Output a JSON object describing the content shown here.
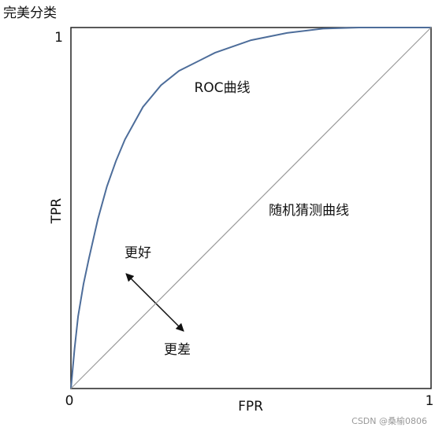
{
  "chart_data": {
    "type": "line",
    "title": "完美分类",
    "x_label": "FPR",
    "y_label": "TPR",
    "xlim": [
      0,
      1
    ],
    "ylim": [
      0,
      1
    ],
    "xticks": [
      0,
      1
    ],
    "yticks": [
      1
    ],
    "series": [
      {
        "name": "ROC曲线",
        "color": "#4d6d9a",
        "x": [
          0,
          0.01,
          0.02,
          0.035,
          0.05,
          0.075,
          0.1,
          0.125,
          0.15,
          0.2,
          0.25,
          0.3,
          0.4,
          0.5,
          0.6,
          0.7,
          0.8,
          1
        ],
        "values": [
          0,
          0.11,
          0.2,
          0.29,
          0.36,
          0.47,
          0.56,
          0.63,
          0.69,
          0.78,
          0.84,
          0.88,
          0.93,
          0.965,
          0.985,
          0.997,
          1,
          1
        ]
      },
      {
        "name": "随机猜测曲线",
        "color": "#9a9a9a",
        "x": [
          0,
          1
        ],
        "values": [
          0,
          1
        ]
      }
    ],
    "annotations": [
      "更好",
      "更差"
    ],
    "watermark": "CSDN @桑榆0806"
  }
}
